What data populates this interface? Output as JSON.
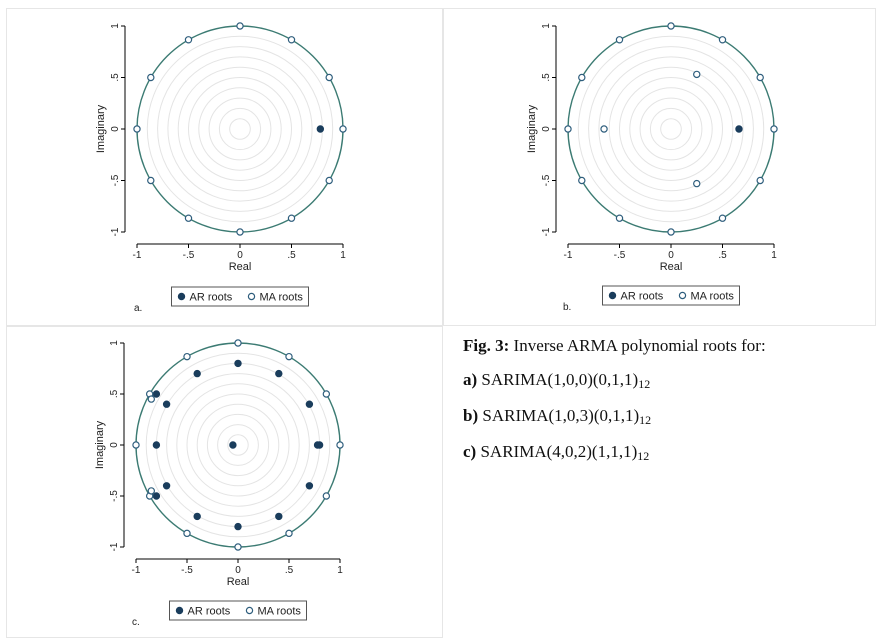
{
  "figure": {
    "caption": {
      "title_bold": "Fig. 3:",
      "title_rest": " Inverse ARMA polynomial roots for:",
      "items": [
        {
          "label": "a)",
          "model": "SARIMA(1,0,0)(0,1,1)",
          "sub": "12"
        },
        {
          "label": "b)",
          "model": "SARIMA(1,0,3)(0,1,1)",
          "sub": "12"
        },
        {
          "label": "c)",
          "model": "SARIMA(4,0,2)(1,1,1)",
          "sub": "12"
        }
      ]
    }
  },
  "colors": {
    "unit_circle": "#3c7b73",
    "ar_fill": "#1a3d5c",
    "ma_stroke": "#2f5e7d",
    "grid_ring": "#e4e4e4",
    "panel_border": "#e6e6e6"
  },
  "chart_data": [
    {
      "type": "scatter",
      "panel_label": "a.",
      "xlabel": "Real",
      "ylabel": "Imaginary",
      "xlim": [
        -1,
        1
      ],
      "ylim": [
        -1,
        1
      ],
      "xticks": [
        "-1",
        "-.5",
        "0",
        ".5",
        "1"
      ],
      "yticks": [
        "-1",
        "-.5",
        "0",
        ".5",
        "1"
      ],
      "legend": [
        "AR roots",
        "MA roots"
      ],
      "series": [
        {
          "name": "AR roots",
          "points": [
            [
              0.78,
              0
            ]
          ]
        },
        {
          "name": "MA roots",
          "points": [
            [
              1,
              0
            ],
            [
              0.866,
              0.5
            ],
            [
              0.5,
              0.866
            ],
            [
              0,
              1
            ],
            [
              -0.5,
              0.866
            ],
            [
              -0.866,
              0.5
            ],
            [
              -1,
              0
            ],
            [
              -0.866,
              -0.5
            ],
            [
              -0.5,
              -0.866
            ],
            [
              0,
              -1
            ],
            [
              0.5,
              -0.866
            ],
            [
              0.866,
              -0.5
            ]
          ]
        }
      ]
    },
    {
      "type": "scatter",
      "panel_label": "b.",
      "xlabel": "Real",
      "ylabel": "Imaginary",
      "xlim": [
        -1,
        1
      ],
      "ylim": [
        -1,
        1
      ],
      "xticks": [
        "-1",
        "-.5",
        "0",
        ".5",
        "1"
      ],
      "yticks": [
        "-1",
        "-.5",
        "0",
        ".5",
        "1"
      ],
      "legend": [
        "AR roots",
        "MA roots"
      ],
      "series": [
        {
          "name": "AR roots",
          "points": [
            [
              0.66,
              0
            ]
          ]
        },
        {
          "name": "MA roots",
          "points": [
            [
              1,
              0
            ],
            [
              0.866,
              0.5
            ],
            [
              0.5,
              0.866
            ],
            [
              0,
              1
            ],
            [
              -0.5,
              0.866
            ],
            [
              -0.866,
              0.5
            ],
            [
              -1,
              0
            ],
            [
              -0.866,
              -0.5
            ],
            [
              -0.5,
              -0.866
            ],
            [
              0,
              -1
            ],
            [
              0.5,
              -0.866
            ],
            [
              0.866,
              -0.5
            ],
            [
              -0.65,
              0
            ],
            [
              0.25,
              0.53
            ],
            [
              0.25,
              -0.53
            ]
          ]
        }
      ]
    },
    {
      "type": "scatter",
      "panel_label": "c.",
      "xlabel": "Real",
      "ylabel": "Imaginary",
      "xlim": [
        -1,
        1
      ],
      "ylim": [
        -1,
        1
      ],
      "xticks": [
        "-1",
        "-.5",
        "0",
        ".5",
        "1"
      ],
      "yticks": [
        "-1",
        "-.5",
        "0",
        ".5",
        "1"
      ],
      "legend": [
        "AR roots",
        "MA roots"
      ],
      "series": [
        {
          "name": "AR roots",
          "points": [
            [
              0.8,
              0
            ],
            [
              0.78,
              0
            ],
            [
              0.7,
              0.4
            ],
            [
              0.4,
              0.7
            ],
            [
              0,
              0.8
            ],
            [
              -0.4,
              0.7
            ],
            [
              -0.7,
              0.4
            ],
            [
              -0.8,
              0
            ],
            [
              -0.7,
              -0.4
            ],
            [
              -0.4,
              -0.7
            ],
            [
              0,
              -0.8
            ],
            [
              0.4,
              -0.7
            ],
            [
              0.7,
              -0.4
            ],
            [
              -0.05,
              0
            ],
            [
              -0.8,
              0.5
            ],
            [
              -0.8,
              -0.5
            ]
          ]
        },
        {
          "name": "MA roots",
          "points": [
            [
              1,
              0
            ],
            [
              0.866,
              0.5
            ],
            [
              0.5,
              0.866
            ],
            [
              0,
              1
            ],
            [
              -0.5,
              0.866
            ],
            [
              -0.866,
              0.5
            ],
            [
              -1,
              0
            ],
            [
              -0.866,
              -0.5
            ],
            [
              -0.5,
              -0.866
            ],
            [
              0,
              -1
            ],
            [
              0.5,
              -0.866
            ],
            [
              0.866,
              -0.5
            ],
            [
              -0.85,
              0.45
            ],
            [
              -0.85,
              -0.45
            ]
          ]
        }
      ]
    }
  ]
}
